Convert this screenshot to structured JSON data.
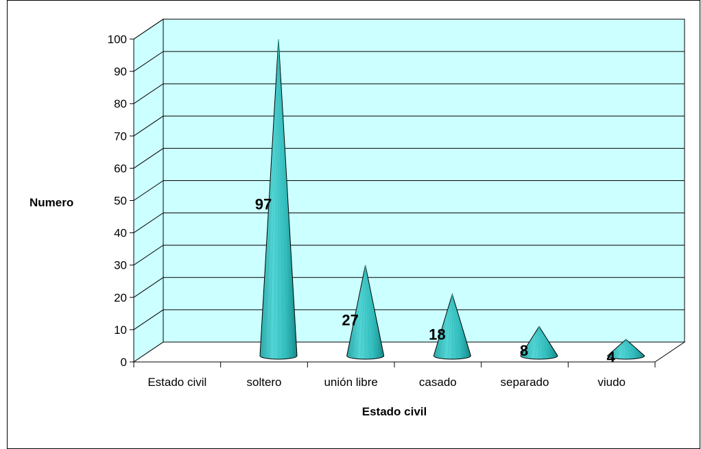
{
  "chart_data": {
    "type": "bar",
    "bar_shape": "cone-3d",
    "categories": [
      "Estado civil",
      "soltero",
      "unión libre",
      "casado",
      "separado",
      "viudo"
    ],
    "values": [
      null,
      97,
      27,
      18,
      8,
      4
    ],
    "data_labels": [
      "",
      "97",
      "27",
      "18",
      "8",
      "4"
    ],
    "title": "",
    "xlabel": "Estado civil",
    "ylabel": "Numero",
    "ylim": [
      0,
      100
    ],
    "yticks": [
      "0",
      "10",
      "20",
      "30",
      "40",
      "50",
      "60",
      "70",
      "80",
      "90",
      "100"
    ],
    "grid": true,
    "legend": "none",
    "colors": {
      "wall": "#ccffff",
      "floor": "#ffffff",
      "cone": "#33cccc",
      "cone_dark": "#1f9e9e",
      "grid": "#000000"
    }
  }
}
